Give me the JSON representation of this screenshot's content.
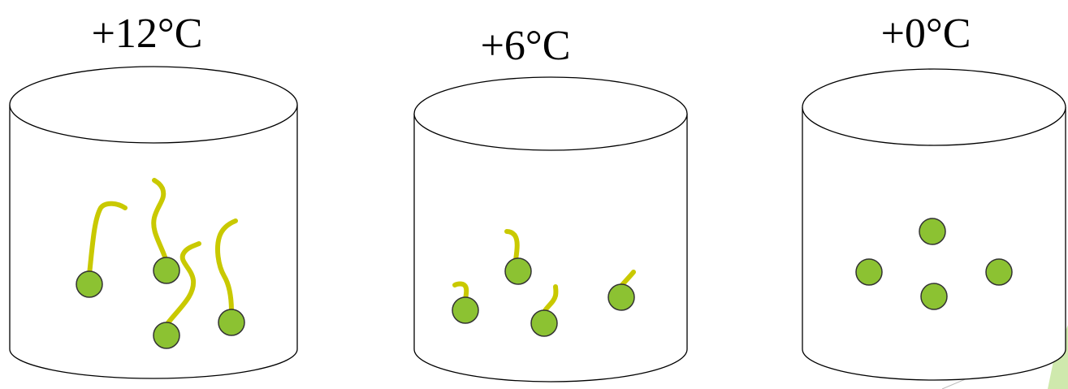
{
  "containers": [
    {
      "label": "+12°C"
    },
    {
      "label": "+6°C"
    },
    {
      "label": "+0°C"
    }
  ]
}
